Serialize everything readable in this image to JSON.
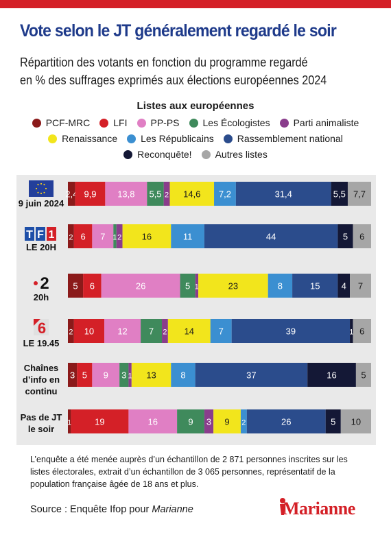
{
  "title": "Vote selon le JT généralement regardé le soir",
  "subtitle_line1": "Répartition des votants en fonction du programme regardé",
  "subtitle_line2": "en % des suffrages exprimés aux élections européennes 2024",
  "legend_title": "Listes aux européennes",
  "footnote": "L’enquête a été menée auprès d’un échantillon de 2 871 personnes inscrites sur les listes électorales, extrait d’un échantillon de 3 065 personnes, représentatif de la population française âgée de 18 ans et plus.",
  "source_prefix": "Source : Enquête Ifop pour",
  "source_name": "Marianne",
  "brand": "Marianne",
  "logos": {
    "tf1_text": "TF1",
    "france2_text": "2",
    "m6_text": "6"
  },
  "chart_data": {
    "type": "bar",
    "orientation": "horizontal-stacked",
    "legend_title": "Listes aux européennes",
    "categories": [
      "9 juin 2024",
      "LE 20H",
      "20h",
      "LE 19.45",
      "Chaînes d’info en continu",
      "Pas de JT le soir"
    ],
    "series": [
      {
        "name": "PCF-MRC",
        "color": "#8b1a1a",
        "values": [
          2.4,
          2,
          5,
          2,
          3,
          1
        ]
      },
      {
        "name": "LFI",
        "color": "#d42027",
        "values": [
          9.9,
          6,
          6,
          10,
          5,
          19
        ]
      },
      {
        "name": "PP-PS",
        "color": "#e07fc4",
        "values": [
          13.8,
          7,
          26,
          12,
          9,
          16
        ]
      },
      {
        "name": "Les Écologistes",
        "color": "#3f8a5c",
        "values": [
          5.5,
          1,
          5,
          7,
          3,
          9
        ]
      },
      {
        "name": "Parti animaliste",
        "color": "#8a3d8c",
        "values": [
          2,
          2,
          1,
          2,
          1,
          3
        ]
      },
      {
        "name": "Renaissance",
        "color": "#f2e51c",
        "values": [
          14.6,
          16,
          23,
          14,
          13,
          9
        ]
      },
      {
        "name": "Les Républicains",
        "color": "#3b8fd1",
        "values": [
          7.2,
          11,
          8,
          7,
          8,
          2
        ]
      },
      {
        "name": "Rassemblement national",
        "color": "#2b4c8c",
        "values": [
          31.4,
          44,
          15,
          39,
          37,
          26
        ]
      },
      {
        "name": "Reconquête!",
        "color": "#141836",
        "values": [
          5.5,
          5,
          4,
          1,
          16,
          5
        ]
      },
      {
        "name": "Autres listes",
        "color": "#a6a6a6",
        "values": [
          7.7,
          6,
          7,
          6,
          5,
          10
        ]
      }
    ],
    "labels": [
      [
        "2,4",
        "9,9",
        "13,8",
        "5,5",
        "2",
        "14,6",
        "7,2",
        "31,4",
        "5,5",
        "7,7"
      ],
      [
        "2",
        "6",
        "7",
        "1",
        "2",
        "16",
        "11",
        "44",
        "5",
        "6"
      ],
      [
        "5",
        "6",
        "26",
        "5",
        "1",
        "23",
        "8",
        "15",
        "4",
        "7"
      ],
      [
        "2",
        "10",
        "12",
        "7",
        "2",
        "14",
        "7",
        "39",
        "1",
        "6"
      ],
      [
        "3",
        "5",
        "9",
        "3",
        "1",
        "13",
        "8",
        "37",
        "16",
        "5"
      ],
      [
        "1",
        "19",
        "16",
        "9",
        "3",
        "9",
        "2",
        "26",
        "5",
        "10"
      ]
    ],
    "label_colors": [
      "#ffffff",
      "#ffffff",
      "#ffffff",
      "#ffffff",
      "#ffffff",
      "#1a1a1a",
      "#ffffff",
      "#ffffff",
      "#ffffff",
      "#1a1a1a"
    ],
    "grid": false
  }
}
